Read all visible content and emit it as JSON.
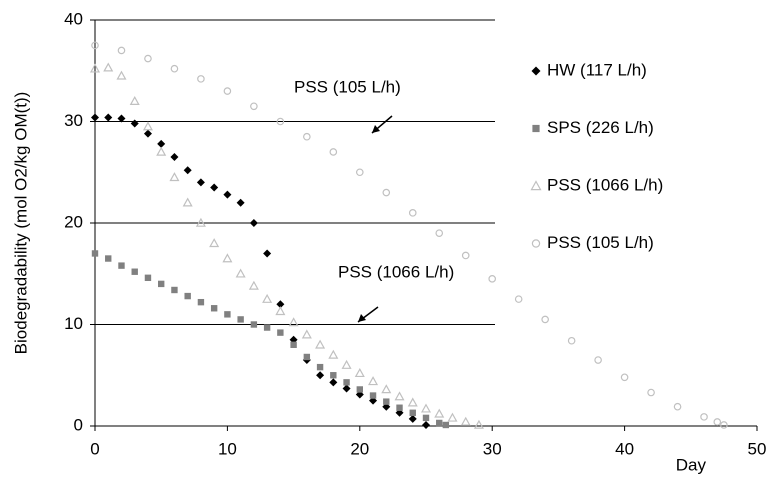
{
  "chart_data": {
    "type": "scatter",
    "y_label": "Biodegradability (mol O2/kg OM(t))",
    "x_label": "Day",
    "xlim": [
      0,
      50
    ],
    "xticks": [
      0,
      10,
      20,
      30,
      40,
      50
    ],
    "ylim": [
      0,
      40
    ],
    "yticks": [
      0,
      10,
      20,
      30,
      40
    ],
    "grid": true,
    "legend": "right",
    "annotations": [
      "PSS (105 L/h)",
      "PSS (1066 L/h)"
    ],
    "series": [
      {
        "name": "HW (117 L/h)",
        "color": "#000000",
        "marker": "diamond",
        "x": [
          0,
          1,
          2,
          3,
          4,
          5,
          6,
          7,
          8,
          9,
          10,
          11,
          12,
          13,
          14,
          15,
          16,
          17,
          18,
          19,
          20,
          21,
          22,
          23,
          24,
          25
        ],
        "values": [
          30.4,
          30.4,
          30.3,
          29.8,
          28.8,
          27.8,
          26.5,
          25.2,
          24,
          23.5,
          22.8,
          22,
          20,
          17,
          12,
          8.5,
          6.5,
          5,
          4.3,
          3.7,
          3.1,
          2.5,
          1.9,
          1.3,
          0.7,
          0.1
        ]
      },
      {
        "name": "SPS (226 L/h)",
        "color": "#808080",
        "marker": "square",
        "x": [
          0,
          1,
          2,
          3,
          4,
          5,
          6,
          7,
          8,
          9,
          10,
          11,
          12,
          13,
          14,
          15,
          16,
          17,
          18,
          19,
          20,
          21,
          22,
          23,
          24,
          25,
          26,
          26.5
        ],
        "values": [
          17,
          16.5,
          15.8,
          15.2,
          14.6,
          14,
          13.4,
          12.8,
          12.2,
          11.6,
          11,
          10.5,
          10,
          9.7,
          9.2,
          8,
          6.8,
          5.8,
          5,
          4.3,
          3.6,
          3,
          2.4,
          1.8,
          1.3,
          0.8,
          0.3,
          0.1
        ]
      },
      {
        "name": "PSS (1066 L/h)",
        "color": "#c0c0c0",
        "marker": "triangle",
        "x": [
          0,
          1,
          2,
          3,
          4,
          5,
          6,
          7,
          8,
          9,
          10,
          11,
          12,
          13,
          14,
          15,
          16,
          17,
          18,
          19,
          20,
          21,
          22,
          23,
          24,
          25,
          26,
          27,
          28,
          29
        ],
        "values": [
          35.2,
          35.3,
          34.5,
          32,
          29.5,
          27,
          24.5,
          22,
          20,
          18,
          16.5,
          15,
          13.8,
          12.5,
          11.3,
          10.2,
          9,
          8,
          7,
          6,
          5.2,
          4.4,
          3.6,
          2.9,
          2.3,
          1.7,
          1.2,
          0.8,
          0.4,
          0.1
        ]
      },
      {
        "name": "PSS (105 L/h)",
        "color": "#c0c0c0",
        "marker": "circle",
        "x": [
          0,
          2,
          4,
          6,
          8,
          10,
          12,
          14,
          16,
          18,
          20,
          22,
          24,
          26,
          28,
          30,
          32,
          34,
          36,
          38,
          40,
          42,
          44,
          46,
          47,
          47.5
        ],
        "values": [
          37.5,
          37,
          36.2,
          35.2,
          34.2,
          33,
          31.5,
          30,
          28.5,
          27,
          25,
          23,
          21,
          19,
          16.8,
          14.5,
          12.5,
          10.5,
          8.4,
          6.5,
          4.8,
          3.3,
          1.9,
          0.9,
          0.4,
          0.1
        ]
      }
    ]
  }
}
